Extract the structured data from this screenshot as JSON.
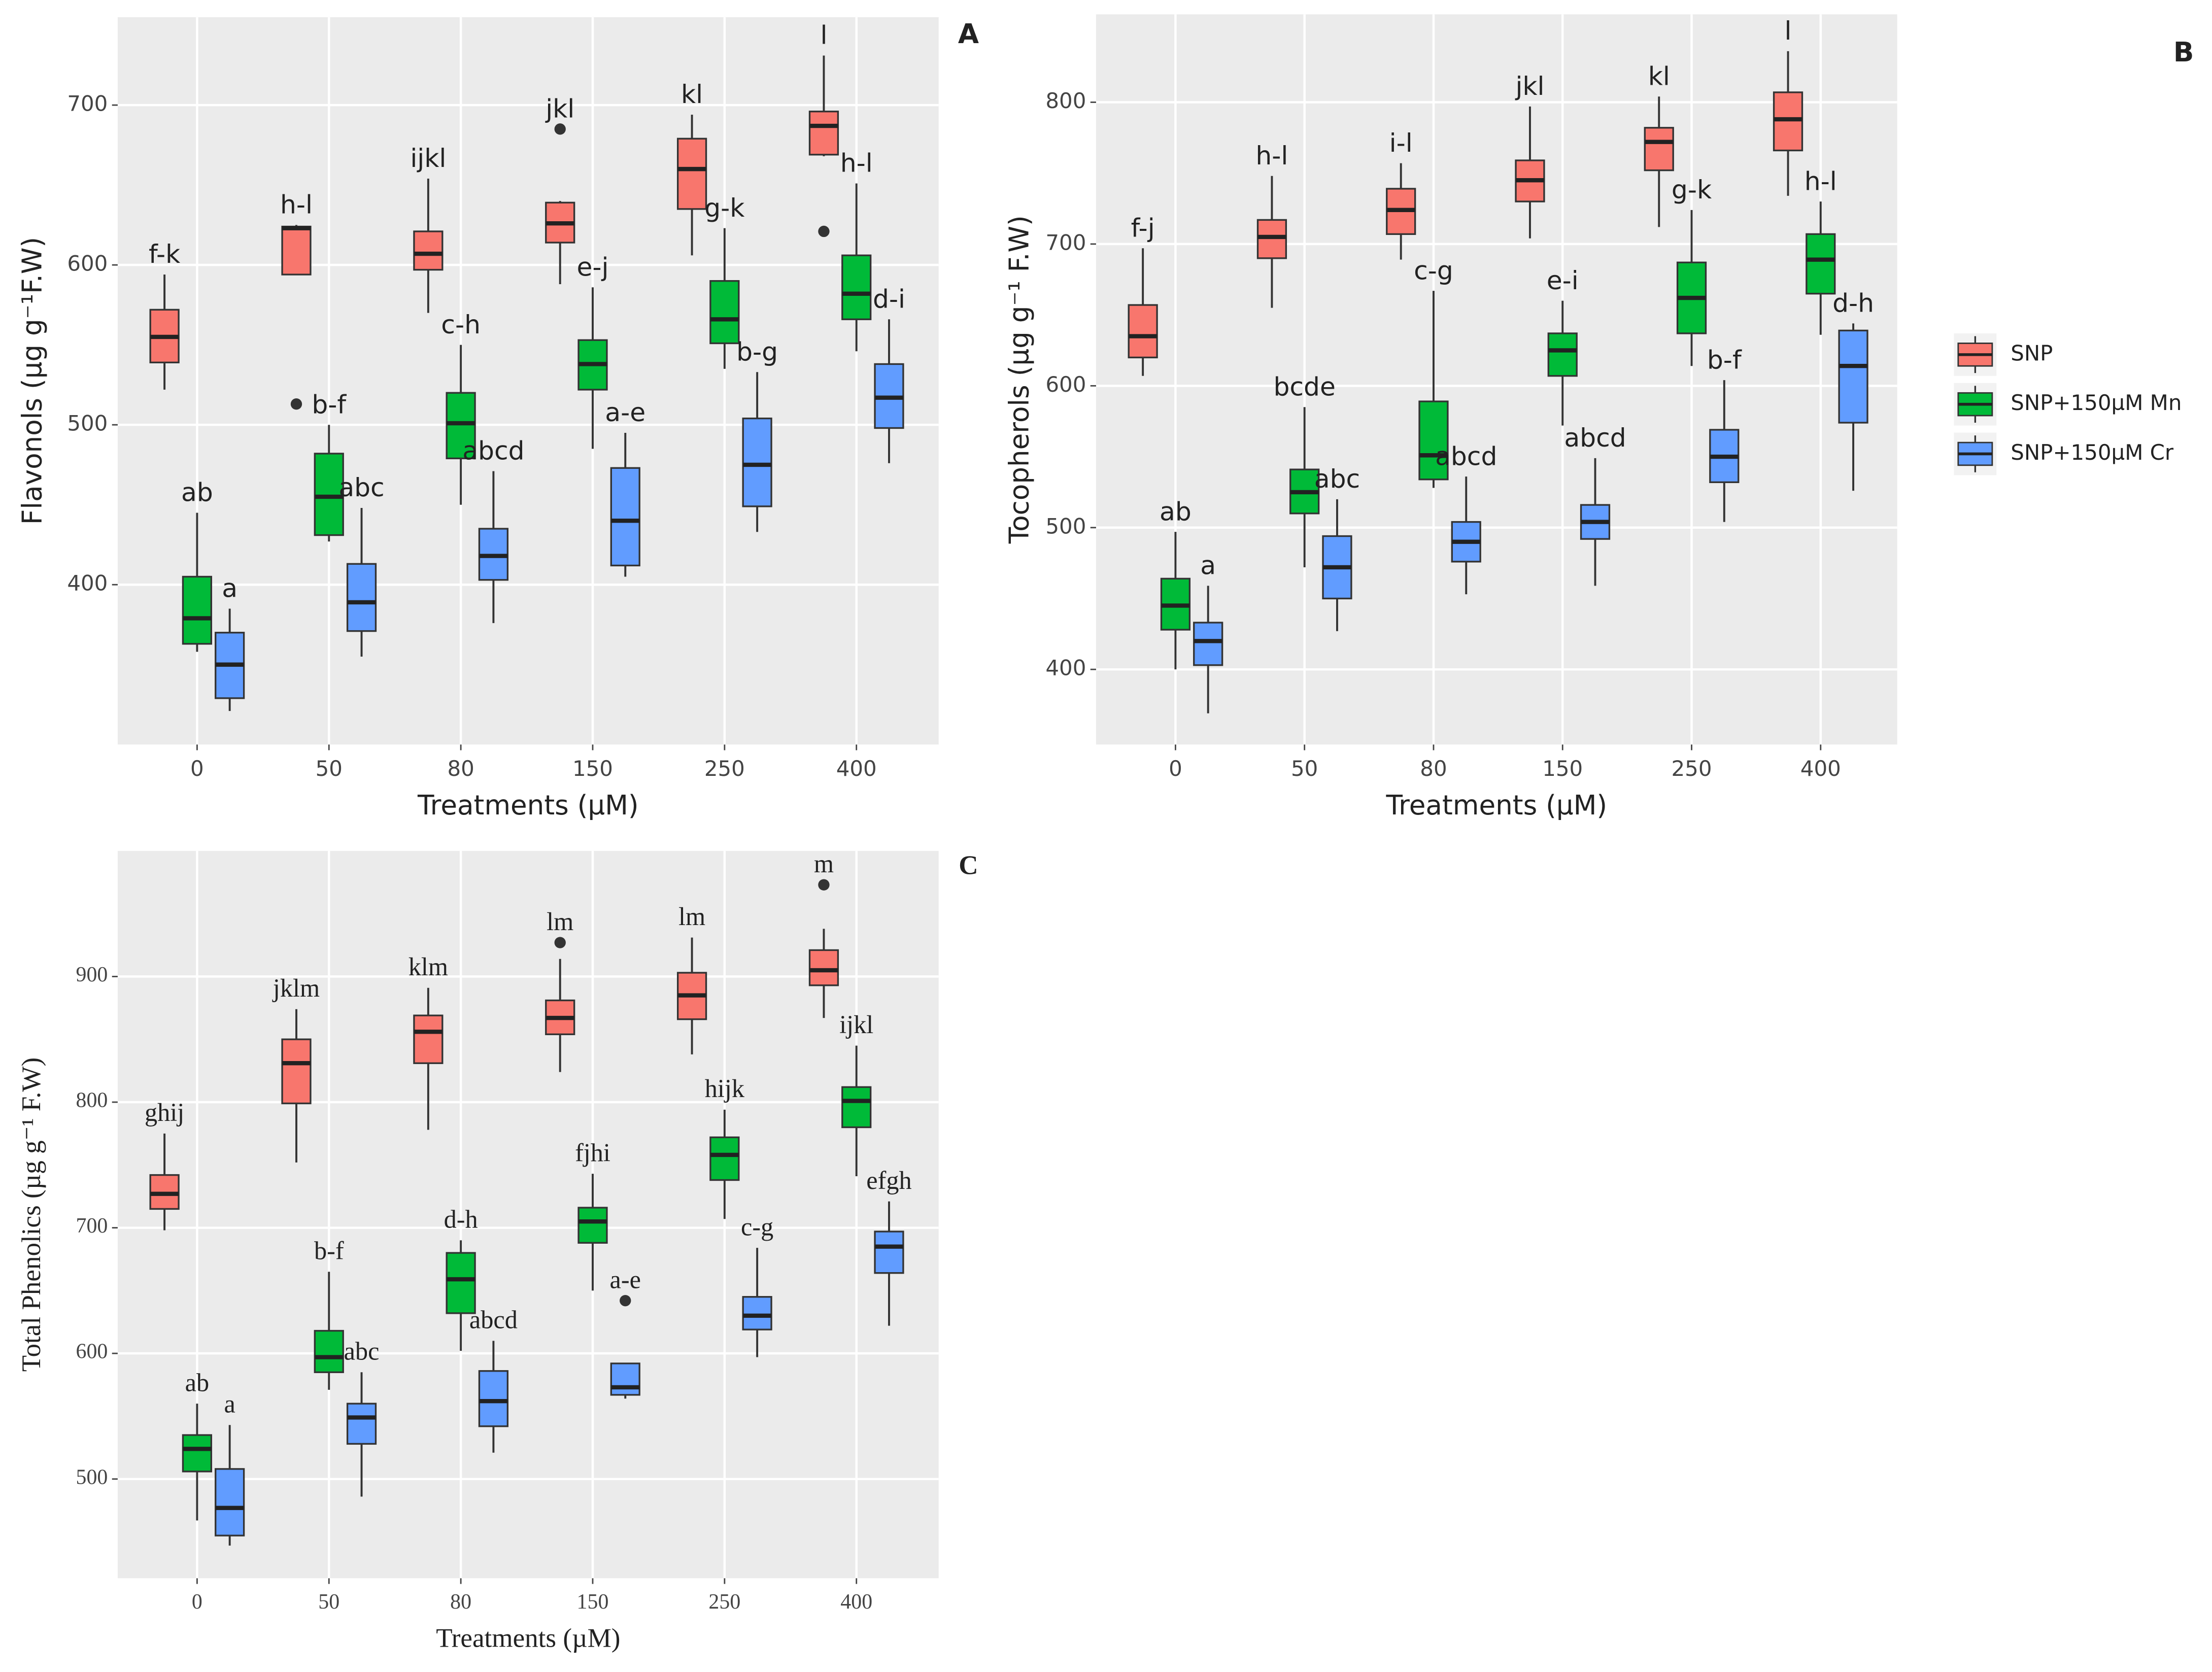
{
  "legend": [
    {
      "name": "SNP",
      "color": "#f8766d"
    },
    {
      "name": "SNP+150µM Mn",
      "color": "#00ba38"
    },
    {
      "name": "SNP+150µM Cr",
      "color": "#619cff"
    }
  ],
  "chart_data": [
    {
      "type": "box",
      "panel": "A",
      "ylabel": "Flavonols (µg g⁻¹F.W)",
      "xlabel": "Treatments (µM)",
      "categories": [
        "0",
        "50",
        "80",
        "150",
        "250",
        "400"
      ],
      "ylim": [
        300,
        755
      ],
      "yticks": [
        400,
        500,
        600,
        700
      ],
      "grid": true,
      "series": [
        {
          "min": [
            522,
            594,
            570,
            588,
            606,
            668
          ],
          "q1": [
            539,
            594,
            597,
            614,
            635,
            669
          ],
          "median": [
            555,
            623,
            607,
            626,
            660,
            687
          ],
          "q3": [
            572,
            624,
            621,
            639,
            679,
            696
          ],
          "max": [
            594,
            625,
            654,
            640,
            694,
            731
          ],
          "outliers": [
            null,
            513,
            null,
            685,
            null,
            621
          ],
          "labels": [
            "f-k",
            "h-l",
            "ijkl",
            "jkl",
            "kl",
            "l"
          ]
        },
        {
          "min": [
            358,
            427,
            450,
            485,
            535,
            546
          ],
          "q1": [
            363,
            431,
            479,
            522,
            551,
            566
          ],
          "median": [
            379,
            455,
            501,
            538,
            566,
            582
          ],
          "q3": [
            405,
            482,
            520,
            553,
            590,
            606
          ],
          "max": [
            445,
            500,
            550,
            586,
            623,
            651
          ],
          "outliers": [
            null,
            null,
            null,
            null,
            null,
            null
          ],
          "labels": [
            "ab",
            "b-f",
            "c-h",
            "e-j",
            "g-k",
            "h-l"
          ]
        },
        {
          "min": [
            321,
            355,
            376,
            405,
            433,
            476
          ],
          "q1": [
            329,
            371,
            403,
            412,
            449,
            498
          ],
          "median": [
            350,
            389,
            418,
            440,
            475,
            517
          ],
          "q3": [
            370,
            413,
            435,
            473,
            504,
            538
          ],
          "max": [
            385,
            448,
            471,
            495,
            533,
            566
          ],
          "outliers": [
            null,
            null,
            null,
            null,
            null,
            null
          ],
          "labels": [
            "a",
            "abc",
            "abcd",
            "a-e",
            "b-g",
            "d-i"
          ]
        }
      ]
    },
    {
      "type": "box",
      "panel": "B",
      "ylabel": "Tocopherols (µg g⁻¹ F.W)",
      "xlabel": "Treatments (µM)",
      "categories": [
        "0",
        "50",
        "80",
        "150",
        "250",
        "400"
      ],
      "ylim": [
        347,
        862
      ],
      "yticks": [
        400,
        500,
        600,
        700,
        800
      ],
      "grid": true,
      "series": [
        {
          "min": [
            607,
            655,
            689,
            704,
            712,
            734
          ],
          "q1": [
            620,
            690,
            707,
            730,
            752,
            766
          ],
          "median": [
            635,
            705,
            724,
            745,
            772,
            788
          ],
          "q3": [
            657,
            717,
            739,
            759,
            782,
            807
          ],
          "max": [
            697,
            748,
            757,
            797,
            804,
            836
          ],
          "outliers": [
            null,
            null,
            null,
            null,
            null,
            null
          ],
          "labels": [
            "f-j",
            "h-l",
            "i-l",
            "jkl",
            "kl",
            "l"
          ]
        },
        {
          "min": [
            400,
            472,
            528,
            572,
            614,
            636
          ],
          "q1": [
            428,
            510,
            534,
            607,
            637,
            665
          ],
          "median": [
            445,
            525,
            551,
            625,
            662,
            689
          ],
          "q3": [
            464,
            541,
            589,
            637,
            687,
            707
          ],
          "max": [
            497,
            585,
            667,
            660,
            724,
            730
          ],
          "outliers": [
            null,
            null,
            null,
            null,
            null,
            null
          ],
          "labels": [
            "ab",
            "bcde",
            "c-g",
            "e-i",
            "g-k",
            "h-l"
          ]
        },
        {
          "min": [
            369,
            427,
            453,
            459,
            504,
            526
          ],
          "q1": [
            403,
            450,
            476,
            492,
            532,
            574
          ],
          "median": [
            420,
            472,
            490,
            504,
            550,
            614
          ],
          "q3": [
            433,
            494,
            504,
            516,
            569,
            639
          ],
          "max": [
            459,
            520,
            536,
            549,
            604,
            644
          ],
          "outliers": [
            null,
            null,
            null,
            null,
            null,
            null
          ],
          "labels": [
            "a",
            "abc",
            "abcd",
            "abcd",
            "b-f",
            "d-h"
          ]
        }
      ]
    },
    {
      "type": "box",
      "panel": "C",
      "ylabel": "Total Phenolics (µg g⁻¹ F.W)",
      "xlabel": "Treatments (µM)",
      "categories": [
        "0",
        "50",
        "80",
        "150",
        "250",
        "400"
      ],
      "ylim": [
        421,
        1000
      ],
      "yticks": [
        500,
        600,
        700,
        800,
        900
      ],
      "grid": true,
      "series": [
        {
          "min": [
            698,
            752,
            778,
            824,
            838,
            867
          ],
          "q1": [
            715,
            799,
            831,
            854,
            866,
            893
          ],
          "median": [
            727,
            831,
            856,
            867,
            885,
            905
          ],
          "q3": [
            742,
            850,
            869,
            881,
            903,
            921
          ],
          "max": [
            775,
            874,
            891,
            914,
            931,
            938
          ],
          "outliers": [
            null,
            null,
            null,
            927,
            null,
            973
          ],
          "labels": [
            "ghij",
            "jklm",
            "klm",
            "lm",
            "lm",
            "m"
          ]
        },
        {
          "min": [
            467,
            571,
            602,
            650,
            707,
            741
          ],
          "q1": [
            506,
            585,
            632,
            688,
            738,
            780
          ],
          "median": [
            524,
            597,
            659,
            705,
            758,
            801
          ],
          "q3": [
            535,
            618,
            680,
            716,
            772,
            812
          ],
          "max": [
            560,
            665,
            690,
            743,
            794,
            845
          ],
          "outliers": [
            null,
            null,
            null,
            null,
            null,
            null
          ],
          "labels": [
            "ab",
            "b-f",
            "d-h",
            "fjhi",
            "hijk",
            "ijkl"
          ]
        },
        {
          "min": [
            447,
            486,
            521,
            564,
            597,
            622
          ],
          "q1": [
            455,
            528,
            542,
            567,
            619,
            664
          ],
          "median": [
            477,
            549,
            562,
            573,
            630,
            685
          ],
          "q3": [
            508,
            560,
            586,
            592,
            645,
            697
          ],
          "max": [
            543,
            585,
            610,
            592,
            684,
            721
          ],
          "outliers": [
            null,
            null,
            null,
            642,
            null,
            null
          ],
          "labels": [
            "a",
            "abc",
            "abcd",
            "a-e",
            "c-g",
            "efgh"
          ]
        }
      ]
    }
  ]
}
